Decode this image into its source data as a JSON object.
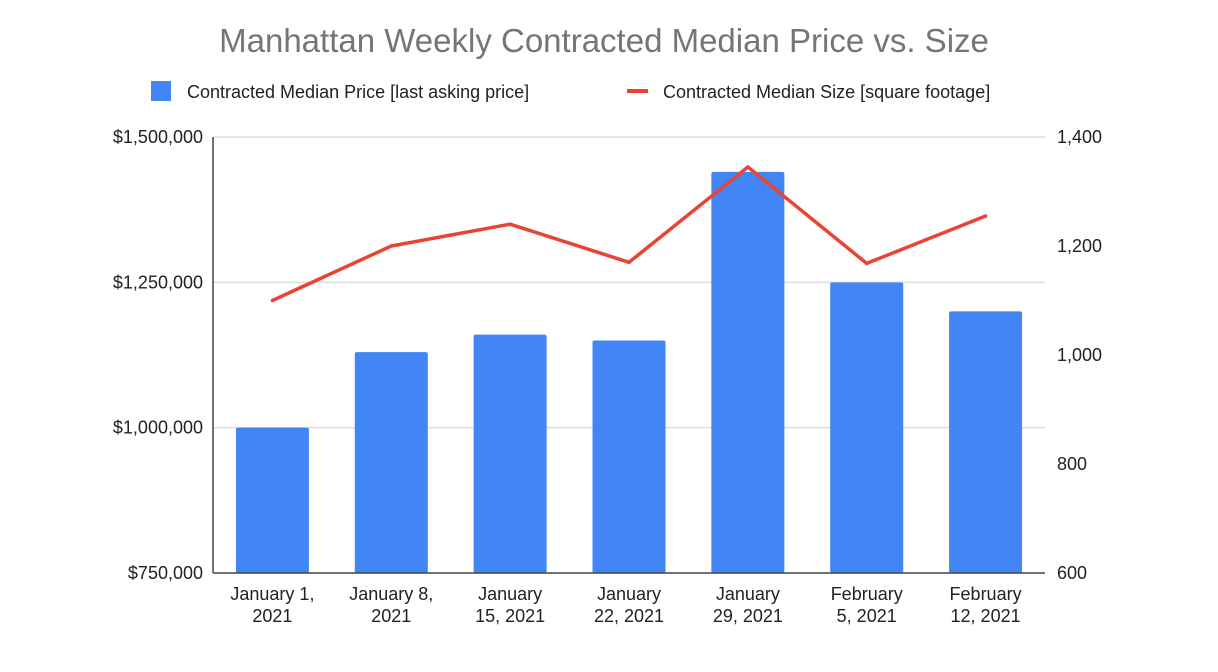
{
  "chart_data": {
    "type": "bar",
    "title": "Manhattan Weekly Contracted Median Price vs. Size",
    "categories": [
      [
        "January 1,",
        "2021"
      ],
      [
        "January 8,",
        "2021"
      ],
      [
        "January",
        "15, 2021"
      ],
      [
        "January",
        "22, 2021"
      ],
      [
        "January",
        "29, 2021"
      ],
      [
        "February",
        "5, 2021"
      ],
      [
        "February",
        "12, 2021"
      ]
    ],
    "series": [
      {
        "name": "Contracted Median Price [last asking price]",
        "type": "bar",
        "axis": "left",
        "color": "#4285f4",
        "values": [
          1000000,
          1130000,
          1160000,
          1150000,
          1440000,
          1250000,
          1200000
        ]
      },
      {
        "name": "Contracted Median Size [square footage]",
        "type": "line",
        "axis": "right",
        "color": "#ea4335",
        "values": [
          1100,
          1200,
          1240,
          1170,
          1345,
          1168,
          1255
        ]
      }
    ],
    "y_left": {
      "lim": [
        750000,
        1500000
      ],
      "ticks": [
        750000,
        1000000,
        1250000,
        1500000
      ],
      "tick_labels": [
        "$750,000",
        "$1,000,000",
        "$1,250,000",
        "$1,500,000"
      ]
    },
    "y_right": {
      "lim": [
        600,
        1400
      ],
      "ticks": [
        600,
        800,
        1000,
        1200,
        1400
      ],
      "tick_labels": [
        "600",
        "800",
        "1,000",
        "1,200",
        "1,400"
      ]
    },
    "grid": true,
    "legend_position": "top"
  }
}
